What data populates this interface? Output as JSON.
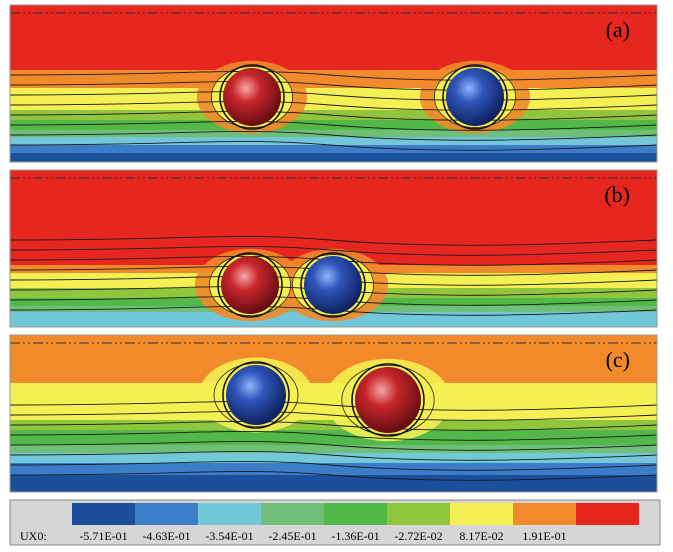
{
  "panels": [
    {
      "label": "(a)"
    },
    {
      "label": "(b)"
    },
    {
      "label": "(c)"
    }
  ],
  "legend": {
    "title": "UX0:",
    "colors": [
      "#1b4f9c",
      "#3b7dc9",
      "#72c7d8",
      "#6fbe7a",
      "#52b848",
      "#8fc63c",
      "#f4ef52",
      "#f2892b",
      "#e6261f"
    ],
    "labels": [
      "-5.71E-01",
      "-4.63E-01",
      "-3.54E-01",
      "-2.45E-01",
      "-1.36E-01",
      "-2.72E-02",
      "8.17E-02",
      "1.91E-01"
    ]
  }
}
